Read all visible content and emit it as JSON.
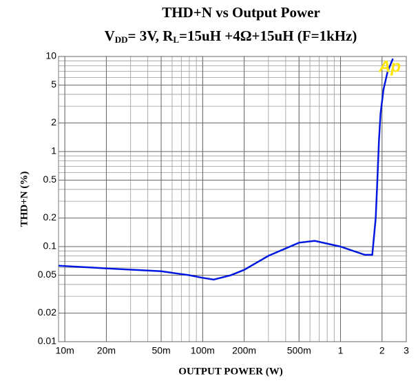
{
  "chart_data": {
    "type": "line",
    "title": "THD+N vs Output Power",
    "subtitle_parts": [
      "V",
      "DD",
      "= 3V, R",
      "L",
      "=15uH +4Ω+15uH (F=1kHz)"
    ],
    "x_label": "OUTPUT POWER (W)",
    "y_label": "THD+N (%)",
    "logo": "Ap",
    "x_log": true,
    "y_log": true,
    "grid": true,
    "xlim": [
      0.009,
      3
    ],
    "ylim": [
      0.01,
      10
    ],
    "xticks": [
      {
        "value": 0.01,
        "label": "10m"
      },
      {
        "value": 0.02,
        "label": "20m"
      },
      {
        "value": 0.05,
        "label": "50m"
      },
      {
        "value": 0.1,
        "label": "100m"
      },
      {
        "value": 0.2,
        "label": "200m"
      },
      {
        "value": 0.5,
        "label": "500m"
      },
      1,
      2,
      3
    ],
    "yticks": [
      10,
      5,
      2,
      1,
      0.5,
      0.2,
      0.1,
      0.05,
      0.02,
      0.01
    ],
    "series": [
      {
        "color": "#0018e0",
        "x": [
          0.009,
          0.02,
          0.05,
          0.08,
          0.1,
          0.12,
          0.16,
          0.2,
          0.3,
          0.5,
          0.65,
          1,
          1.5,
          1.7,
          1.8,
          1.85,
          1.9,
          1.95,
          2.05,
          2.2,
          2.4
        ],
        "values": [
          0.063,
          0.059,
          0.055,
          0.05,
          0.047,
          0.045,
          0.05,
          0.057,
          0.08,
          0.11,
          0.115,
          0.1,
          0.082,
          0.082,
          0.2,
          0.5,
          1.3,
          2.5,
          4.5,
          7,
          9.5
        ]
      }
    ]
  }
}
